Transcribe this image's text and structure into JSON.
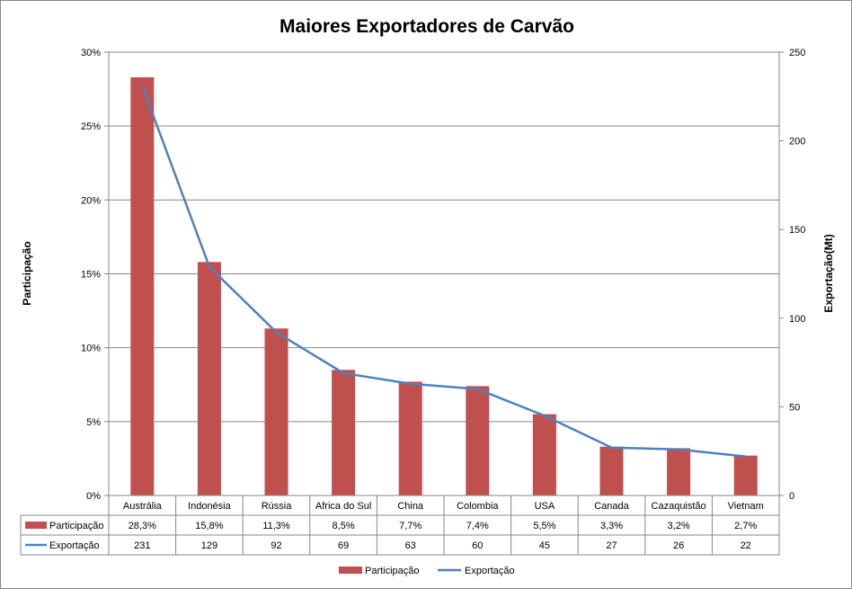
{
  "chart_data": {
    "type": "bar",
    "title": "Maiores Exportadores de Carvão",
    "categories": [
      "Austrália",
      "Indonésia",
      "Rússia",
      "Africa do Sul",
      "China",
      "Colombia",
      "USA",
      "Canada",
      "Cazaquistão",
      "Vietnam"
    ],
    "series": [
      {
        "name": "Participação",
        "type": "bar",
        "axis": "left",
        "color": "#C0504D",
        "values": [
          28.3,
          15.8,
          11.3,
          8.5,
          7.7,
          7.4,
          5.5,
          3.3,
          3.2,
          2.7
        ],
        "labels": [
          "28,3%",
          "15,8%",
          "11,3%",
          "8,5%",
          "7,7%",
          "7,4%",
          "5,5%",
          "3,3%",
          "3,2%",
          "2,7%"
        ]
      },
      {
        "name": "Exportação",
        "type": "line",
        "axis": "right",
        "color": "#4F81BD",
        "values": [
          231,
          129,
          92,
          69,
          63,
          60,
          45,
          27,
          26,
          22
        ],
        "labels": [
          "231",
          "129",
          "92",
          "69",
          "63",
          "60",
          "45",
          "27",
          "26",
          "22"
        ]
      }
    ],
    "ylabel_left": "Participação",
    "ylabel_right": "Exportação(Mt)",
    "ylim_left": [
      0,
      30
    ],
    "ylim_right": [
      0,
      250
    ],
    "yticks_left": [
      "0%",
      "5%",
      "10%",
      "15%",
      "20%",
      "25%",
      "30%"
    ],
    "yticks_right": [
      "0",
      "50",
      "100",
      "150",
      "200",
      "250"
    ],
    "grid": true,
    "legend": "bottom",
    "data_table": true
  }
}
